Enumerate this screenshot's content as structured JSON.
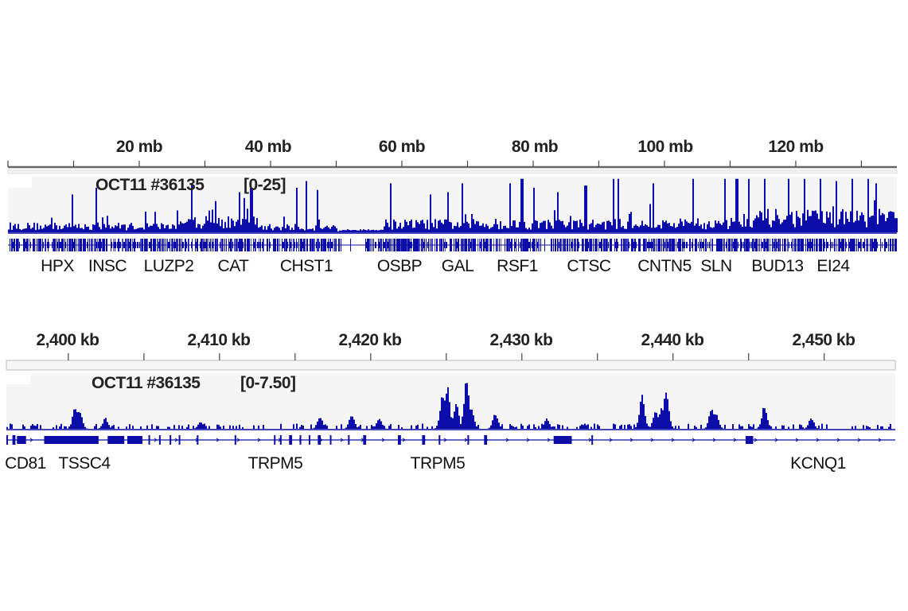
{
  "color": "#0c0ca8",
  "track_bg": "#f5f5f5",
  "chart_data": [
    {
      "type": "area",
      "x_unit": "mb",
      "xlim": [
        0,
        135.4
      ],
      "ylim": [
        0,
        25
      ],
      "tick_labels": [
        "20 mb",
        "40 mb",
        "60 mb",
        "80 mb",
        "100 mb",
        "120 mb"
      ],
      "tick_values": [
        20,
        40,
        60,
        80,
        100,
        120
      ],
      "track_name": "OCT11 #36135",
      "range_label": "[0-25]",
      "background_levels": [
        [
          0,
          27,
          3
        ],
        [
          27,
          38,
          5
        ],
        [
          38,
          50,
          2.5
        ],
        [
          50,
          57,
          1
        ],
        [
          57,
          110,
          4
        ],
        [
          110,
          135.4,
          7
        ]
      ],
      "peaks": [
        [
          9.7,
          17
        ],
        [
          13.3,
          20
        ],
        [
          27.9,
          22
        ],
        [
          31.5,
          14
        ],
        [
          35.2,
          18
        ],
        [
          37,
          20
        ],
        [
          43.9,
          20
        ],
        [
          45.3,
          23
        ],
        [
          47,
          19
        ],
        [
          58.2,
          22
        ],
        [
          64.2,
          17
        ],
        [
          67,
          18
        ],
        [
          69.1,
          22
        ],
        [
          76.4,
          22
        ],
        [
          78.2,
          24
        ],
        [
          80,
          20
        ],
        [
          83.6,
          18
        ],
        [
          87.9,
          21
        ],
        [
          92.1,
          24
        ],
        [
          92.8,
          24
        ],
        [
          98.2,
          22
        ],
        [
          104.2,
          24
        ],
        [
          109.1,
          24
        ],
        [
          110.9,
          24
        ],
        [
          112.7,
          24
        ],
        [
          115.2,
          24
        ],
        [
          118.8,
          24
        ],
        [
          121.2,
          24
        ],
        [
          123.6,
          24
        ],
        [
          126.1,
          23
        ],
        [
          128.5,
          24
        ],
        [
          130.9,
          24
        ],
        [
          132.1,
          22
        ]
      ],
      "gene_track_gaps": [
        [
          50.9,
          54.5
        ],
        [
          81.2,
          83
        ]
      ],
      "genes": [
        "HPX",
        "INSC",
        "LUZP2",
        "CAT",
        "CHST1",
        "OSBP",
        "GAL",
        "RSF1",
        "CTSC",
        "CNTN5",
        "SLN",
        "BUD13",
        "EI24"
      ]
    },
    {
      "type": "area",
      "x_unit": "kb",
      "xlim": [
        2395.9,
        2454.7
      ],
      "ylim": [
        0,
        7.5
      ],
      "tick_labels": [
        "2,400 kb",
        "2,410 kb",
        "2,420 kb",
        "2,430 kb",
        "2,440 kb",
        "2,450 kb"
      ],
      "tick_values": [
        2400,
        2410,
        2420,
        2430,
        2440,
        2450
      ],
      "track_name": "OCT11 #36135",
      "range_label": "[0-7.50]",
      "peaks": [
        [
          2400.4,
          3.0
        ],
        [
          2400.7,
          2.5
        ],
        [
          2402.4,
          1.5
        ],
        [
          2408.7,
          1.0
        ],
        [
          2416.6,
          1.8
        ],
        [
          2418.7,
          2.0
        ],
        [
          2420.5,
          1.5
        ],
        [
          2424.7,
          4.5
        ],
        [
          2425,
          6.1
        ],
        [
          2425.6,
          3.5
        ],
        [
          2426.3,
          6.8
        ],
        [
          2426.6,
          3.0
        ],
        [
          2428.2,
          2.2
        ],
        [
          2431.6,
          1.5
        ],
        [
          2437.9,
          4.6
        ],
        [
          2438.8,
          2.5
        ],
        [
          2439.2,
          3.0
        ],
        [
          2439.5,
          5.4
        ],
        [
          2442.5,
          2.8
        ],
        [
          2442.8,
          2.2
        ],
        [
          2446,
          3.3
        ],
        [
          2449.1,
          1.5
        ]
      ],
      "exons": [
        [
          2395.9,
          2396.0
        ],
        [
          2396.3,
          2396.5
        ],
        [
          2396.6,
          2397.2
        ],
        [
          2398.4,
          2402.0
        ],
        [
          2402.6,
          2403.7
        ],
        [
          2403.9,
          2404.9
        ],
        [
          2405.3,
          2405.4
        ],
        [
          2406,
          2406.1
        ],
        [
          2406.7,
          2406.8
        ],
        [
          2407.3,
          2407.4
        ],
        [
          2408.5,
          2408.6
        ],
        [
          2411,
          2411.1
        ],
        [
          2413.6,
          2413.7
        ],
        [
          2414,
          2414.1
        ],
        [
          2414.6,
          2414.8
        ],
        [
          2415.3,
          2415.4
        ],
        [
          2415.9,
          2416.0
        ],
        [
          2416.5,
          2416.7
        ],
        [
          2417.3,
          2417.4
        ],
        [
          2418.5,
          2418.6
        ],
        [
          2419.5,
          2419.7
        ],
        [
          2421.8,
          2422.0
        ],
        [
          2423.4,
          2423.6
        ],
        [
          2424.5,
          2424.6
        ],
        [
          2426.4,
          2426.5
        ],
        [
          2427.5,
          2427.7
        ],
        [
          2432.1,
          2433.3
        ],
        [
          2434.6,
          2434.7
        ],
        [
          2444.8,
          2445.3
        ]
      ],
      "genes": [
        "CD81",
        "TSSC4",
        "TRPM5",
        "TRPM5",
        "KCNQ1"
      ]
    }
  ]
}
